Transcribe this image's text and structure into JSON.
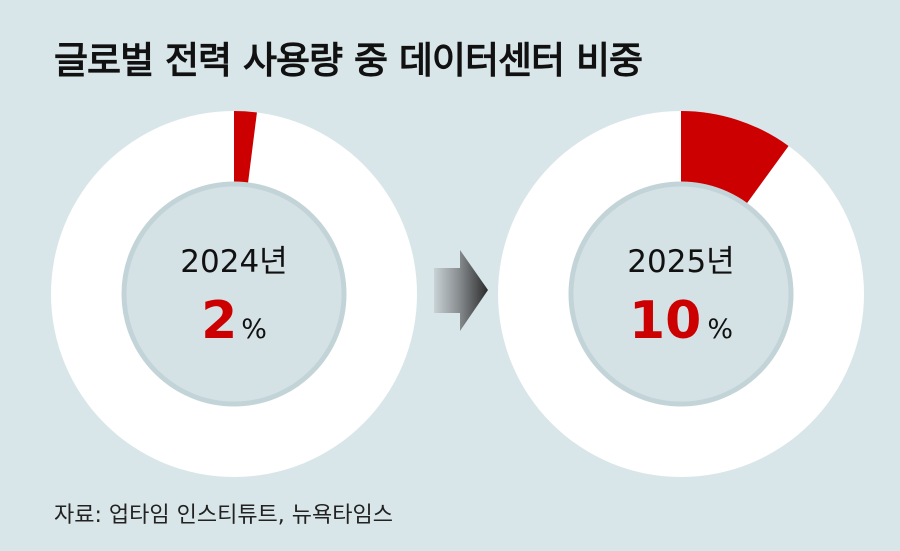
{
  "title": "글로벌 전력 사용량 중 데이터센터 비중",
  "source": "자료: 업타임 인스티튜트, 뉴욕타임스",
  "colors": {
    "background": "#d9e6e9",
    "ring": "#ffffff",
    "highlight": "#cc0000",
    "inner": "#d5e2e5",
    "inner_border": "#c3d4d8",
    "text": "#111111"
  },
  "chart_data": [
    {
      "type": "pie",
      "year_label": "2024년",
      "value": 2,
      "value_text": "2",
      "unit": "%",
      "max": 100
    },
    {
      "type": "pie",
      "year_label": "2025년",
      "value": 10,
      "value_text": "10",
      "unit": "%",
      "max": 100
    }
  ]
}
